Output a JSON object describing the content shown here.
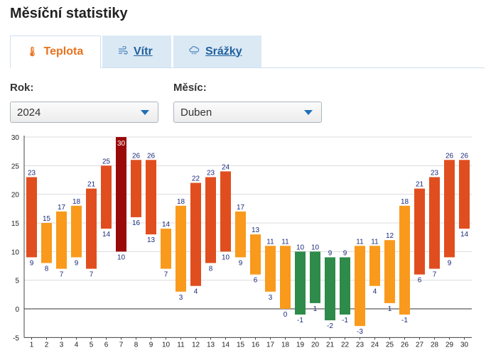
{
  "page": {
    "title": "Měsíční statistiky"
  },
  "tabs": [
    {
      "label": "Teplota",
      "icon": "thermometer-icon",
      "active": true
    },
    {
      "label": "Vítr",
      "icon": "wind-icon",
      "active": false
    },
    {
      "label": "Srážky",
      "icon": "rain-cloud-icon",
      "active": false
    }
  ],
  "filters": {
    "year_label": "Rok:",
    "year_value": "2024",
    "month_label": "Měsíc:",
    "month_value": "Duben"
  },
  "colors": {
    "accent": "#e8721c",
    "link": "#1f5f9c",
    "tab_idle_bg": "#dbe9f5",
    "bar_hot": "#e04e1f",
    "bar_warm": "#f99a1c",
    "bar_cool": "#2e8b4a",
    "bar_max": "#9a0a0a",
    "label": "#1a2a7a"
  },
  "chart_data": {
    "type": "bar",
    "subtype": "floating-range",
    "x": [
      1,
      2,
      3,
      4,
      5,
      6,
      7,
      8,
      9,
      10,
      11,
      12,
      13,
      14,
      15,
      16,
      17,
      18,
      19,
      20,
      21,
      22,
      23,
      24,
      25,
      26,
      27,
      28,
      29,
      30
    ],
    "max": [
      23,
      15,
      17,
      18,
      21,
      25,
      30,
      26,
      26,
      14,
      18,
      22,
      23,
      24,
      17,
      13,
      11,
      11,
      10,
      10,
      9,
      9,
      11,
      11,
      12,
      18,
      21,
      23,
      26,
      26
    ],
    "min": [
      9,
      8,
      7,
      9,
      7,
      14,
      10,
      16,
      13,
      7,
      3,
      4,
      8,
      10,
      9,
      6,
      3,
      0,
      -1,
      1,
      -2,
      -1,
      -3,
      4,
      1,
      -1,
      6,
      7,
      9,
      14
    ],
    "ylim": [
      -5,
      30
    ],
    "yticks": [
      -5,
      0,
      5,
      10,
      15,
      20,
      25,
      30
    ],
    "grid": true
  }
}
